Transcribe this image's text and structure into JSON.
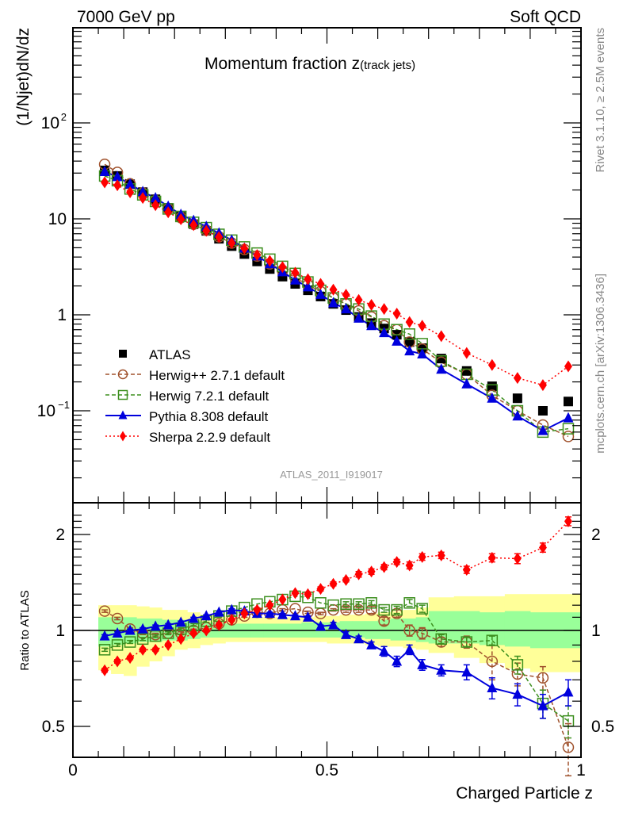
{
  "header": {
    "left_label": "7000 GeV pp",
    "right_label": "Soft QCD"
  },
  "side_labels": {
    "rivet": "Rivet 3.1.10, ≥ 2.5M events",
    "mcplots": "mcplots.cern.ch [arXiv:1306.3436]"
  },
  "chart_data": [
    {
      "type": "scatter",
      "panel": "main",
      "title": "Momentum fraction z",
      "title_suffix": "(track jets)",
      "xlabel": "Charged Particle z",
      "ylabel": "(1/Njet)dN/dz",
      "yscale": "log",
      "xlim": [
        0,
        1
      ],
      "ylim": [
        0.022,
        800
      ],
      "ytick_labels": [
        {
          "v": 100,
          "base": "10",
          "exp": "2"
        },
        {
          "v": 10,
          "base": "10",
          "exp": ""
        },
        {
          "v": 1,
          "base": "1",
          "exp": ""
        },
        {
          "v": 0.1,
          "base": "10",
          "exp": "−1"
        }
      ],
      "analysis_id": "ATLAS_2011_I919017",
      "legend_position": "bottom-left",
      "x": [
        0.0625,
        0.0875,
        0.1125,
        0.1375,
        0.1625,
        0.1875,
        0.2125,
        0.2375,
        0.2625,
        0.2875,
        0.3125,
        0.3375,
        0.3625,
        0.3875,
        0.4125,
        0.4375,
        0.4625,
        0.4875,
        0.5125,
        0.5375,
        0.5625,
        0.5875,
        0.6125,
        0.6375,
        0.6625,
        0.6875,
        0.725,
        0.775,
        0.825,
        0.875,
        0.925,
        0.975
      ],
      "series": [
        {
          "name": "ATLAS",
          "style": "data",
          "color": "#000000",
          "values": [
            32,
            28,
            23,
            19,
            16,
            13,
            10.5,
            8.8,
            7.5,
            6.2,
            5.2,
            4.3,
            3.6,
            3.0,
            2.5,
            2.1,
            1.8,
            1.55,
            1.3,
            1.12,
            0.95,
            0.82,
            0.72,
            0.62,
            0.52,
            0.45,
            0.35,
            0.26,
            0.18,
            0.135,
            0.1,
            0.125
          ]
        },
        {
          "name": "Herwig++ 2.7.1 default",
          "style": "circle-dashed",
          "color": "#a0522d",
          "values": [
            37,
            30.5,
            23.2,
            18.6,
            15.5,
            12.7,
            10.3,
            8.8,
            7.6,
            6.5,
            5.6,
            4.8,
            4.1,
            3.4,
            2.9,
            2.45,
            2.05,
            1.75,
            1.5,
            1.3,
            1.1,
            0.95,
            0.77,
            0.7,
            0.52,
            0.44,
            0.32,
            0.24,
            0.145,
            0.1,
            0.071,
            0.054
          ]
        },
        {
          "name": "Herwig 7.2.1 default",
          "style": "square-dashed",
          "color": "#3d8f1f",
          "values": [
            28,
            25,
            20.5,
            17.8,
            15.2,
            12.7,
            10.6,
            9.2,
            8.1,
            6.9,
            6.0,
            5.1,
            4.4,
            3.8,
            3.2,
            2.7,
            2.2,
            1.8,
            1.5,
            1.3,
            1.15,
            0.97,
            0.8,
            0.7,
            0.63,
            0.5,
            0.33,
            0.24,
            0.165,
            0.1,
            0.06,
            0.065
          ]
        },
        {
          "name": "Pythia 8.308 default",
          "style": "triangle-solid",
          "color": "#0000dd",
          "values": [
            31,
            27.5,
            23,
            19.2,
            16.5,
            13.5,
            11.1,
            9.6,
            8.3,
            7.1,
            6.0,
            4.95,
            4.1,
            3.4,
            2.8,
            2.3,
            1.95,
            1.63,
            1.33,
            1.15,
            0.92,
            0.77,
            0.65,
            0.53,
            0.42,
            0.39,
            0.27,
            0.19,
            0.135,
            0.088,
            0.062,
            0.084
          ]
        },
        {
          "name": "Sherpa 2.2.9 default",
          "style": "diamond-dotted",
          "color": "#ff0000",
          "values": [
            24,
            22.4,
            18.9,
            16.5,
            13.9,
            11.7,
            9.9,
            8.6,
            7.5,
            6.45,
            5.6,
            4.9,
            4.2,
            3.65,
            3.15,
            2.75,
            2.35,
            2.1,
            1.83,
            1.62,
            1.43,
            1.27,
            1.15,
            1.03,
            0.84,
            0.77,
            0.6,
            0.4,
            0.3,
            0.22,
            0.185,
            0.29
          ]
        }
      ]
    },
    {
      "type": "scatter",
      "panel": "ratio",
      "ylabel": "Ratio to ATLAS",
      "xlabel": "Charged Particle z",
      "yscale": "log",
      "xlim": [
        0,
        1
      ],
      "ylim": [
        0.42,
        2.35
      ],
      "ytick_labels": [
        "2",
        "1",
        "0.5"
      ],
      "xtick_labels": [
        "0",
        "0.5",
        "1"
      ],
      "x": [
        0.0625,
        0.0875,
        0.1125,
        0.1375,
        0.1625,
        0.1875,
        0.2125,
        0.2375,
        0.2625,
        0.2875,
        0.3125,
        0.3375,
        0.3625,
        0.3875,
        0.4125,
        0.4375,
        0.4625,
        0.4875,
        0.5125,
        0.5375,
        0.5625,
        0.5875,
        0.6125,
        0.6375,
        0.6625,
        0.6875,
        0.725,
        0.775,
        0.825,
        0.875,
        0.925,
        0.975
      ],
      "bin_edges": [
        0.05,
        0.075,
        0.1,
        0.125,
        0.15,
        0.175,
        0.2,
        0.225,
        0.25,
        0.275,
        0.3,
        0.325,
        0.35,
        0.375,
        0.4,
        0.425,
        0.45,
        0.475,
        0.5,
        0.525,
        0.55,
        0.575,
        0.6,
        0.625,
        0.65,
        0.675,
        0.7,
        0.75,
        0.8,
        0.85,
        0.9,
        0.95,
        1.0
      ],
      "band_1sigma": [
        [
          0.89,
          1.1
        ],
        [
          0.9,
          1.1
        ],
        [
          0.91,
          1.1
        ],
        [
          0.92,
          1.09
        ],
        [
          0.92,
          1.09
        ],
        [
          0.93,
          1.08
        ],
        [
          0.93,
          1.08
        ],
        [
          0.94,
          1.07
        ],
        [
          0.95,
          1.06
        ],
        [
          0.95,
          1.06
        ],
        [
          0.95,
          1.05
        ],
        [
          0.95,
          1.05
        ],
        [
          0.95,
          1.05
        ],
        [
          0.95,
          1.05
        ],
        [
          0.95,
          1.05
        ],
        [
          0.95,
          1.05
        ],
        [
          0.95,
          1.06
        ],
        [
          0.95,
          1.06
        ],
        [
          0.95,
          1.06
        ],
        [
          0.95,
          1.07
        ],
        [
          0.95,
          1.07
        ],
        [
          0.94,
          1.07
        ],
        [
          0.94,
          1.08
        ],
        [
          0.93,
          1.09
        ],
        [
          0.93,
          1.09
        ],
        [
          0.92,
          1.1
        ],
        [
          0.91,
          1.15
        ],
        [
          0.91,
          1.15
        ],
        [
          0.9,
          1.14
        ],
        [
          0.89,
          1.15
        ],
        [
          0.88,
          1.14
        ],
        [
          0.88,
          1.14
        ]
      ],
      "band_2sigma": [
        [
          0.75,
          1.2
        ],
        [
          0.73,
          1.2
        ],
        [
          0.72,
          1.2
        ],
        [
          0.77,
          1.19
        ],
        [
          0.8,
          1.18
        ],
        [
          0.83,
          1.16
        ],
        [
          0.87,
          1.16
        ],
        [
          0.88,
          1.14
        ],
        [
          0.9,
          1.12
        ],
        [
          0.91,
          1.11
        ],
        [
          0.92,
          1.1
        ],
        [
          0.92,
          1.1
        ],
        [
          0.92,
          1.1
        ],
        [
          0.92,
          1.1
        ],
        [
          0.92,
          1.1
        ],
        [
          0.92,
          1.1
        ],
        [
          0.92,
          1.1
        ],
        [
          0.92,
          1.11
        ],
        [
          0.91,
          1.11
        ],
        [
          0.91,
          1.12
        ],
        [
          0.91,
          1.12
        ],
        [
          0.9,
          1.13
        ],
        [
          0.89,
          1.14
        ],
        [
          0.89,
          1.15
        ],
        [
          0.88,
          1.16
        ],
        [
          0.87,
          1.18
        ],
        [
          0.85,
          1.27
        ],
        [
          0.82,
          1.28
        ],
        [
          0.79,
          1.28
        ],
        [
          0.76,
          1.3
        ],
        [
          0.74,
          1.3
        ],
        [
          0.74,
          1.3
        ]
      ],
      "series": [
        {
          "name": "Herwig++ 2.7.1 default",
          "color": "#a0522d",
          "style": "circle-dashed",
          "values": [
            1.15,
            1.09,
            1.01,
            0.98,
            0.97,
            0.98,
            0.98,
            1.0,
            1.02,
            1.05,
            1.08,
            1.11,
            1.14,
            1.13,
            1.16,
            1.17,
            1.14,
            1.13,
            1.16,
            1.16,
            1.16,
            1.16,
            1.07,
            1.13,
            1.0,
            0.98,
            0.92,
            0.92,
            0.8,
            0.73,
            0.71,
            0.43
          ],
          "errors": [
            0.01,
            0.01,
            0.01,
            0.01,
            0.01,
            0.01,
            0.01,
            0.01,
            0.01,
            0.01,
            0.01,
            0.01,
            0.01,
            0.01,
            0.01,
            0.01,
            0.01,
            0.01,
            0.01,
            0.02,
            0.02,
            0.03,
            0.03,
            0.03,
            0.04,
            0.04,
            0.03,
            0.04,
            0.1,
            0.06,
            0.06,
            0.08
          ]
        },
        {
          "name": "Herwig 7.2.1 default",
          "color": "#3d8f1f",
          "style": "square-dashed",
          "values": [
            0.87,
            0.9,
            0.92,
            0.94,
            0.96,
            0.98,
            1.01,
            1.04,
            1.07,
            1.11,
            1.15,
            1.18,
            1.21,
            1.23,
            1.25,
            1.28,
            1.27,
            1.22,
            1.2,
            1.21,
            1.21,
            1.22,
            1.16,
            1.16,
            1.22,
            1.17,
            0.94,
            0.92,
            0.93,
            0.78,
            0.59,
            0.52
          ],
          "errors": [
            0.01,
            0.01,
            0.01,
            0.01,
            0.01,
            0.01,
            0.01,
            0.01,
            0.01,
            0.01,
            0.01,
            0.01,
            0.01,
            0.01,
            0.01,
            0.01,
            0.01,
            0.01,
            0.01,
            0.02,
            0.02,
            0.02,
            0.02,
            0.03,
            0.03,
            0.03,
            0.03,
            0.03,
            0.03,
            0.05,
            0.06,
            0.06
          ]
        },
        {
          "name": "Pythia 8.308 default",
          "color": "#0000dd",
          "style": "triangle-solid",
          "values": [
            0.96,
            0.98,
            1.0,
            1.01,
            1.03,
            1.04,
            1.06,
            1.09,
            1.11,
            1.14,
            1.16,
            1.15,
            1.13,
            1.13,
            1.12,
            1.11,
            1.1,
            1.03,
            1.04,
            0.97,
            0.94,
            0.9,
            0.86,
            0.8,
            0.87,
            0.78,
            0.75,
            0.74,
            0.66,
            0.63,
            0.58,
            0.64
          ],
          "errors": [
            0.01,
            0.01,
            0.01,
            0.01,
            0.01,
            0.01,
            0.01,
            0.01,
            0.01,
            0.01,
            0.01,
            0.01,
            0.01,
            0.01,
            0.01,
            0.01,
            0.01,
            0.01,
            0.02,
            0.02,
            0.02,
            0.02,
            0.03,
            0.03,
            0.03,
            0.03,
            0.03,
            0.04,
            0.05,
            0.05,
            0.05,
            0.06
          ]
        },
        {
          "name": "Sherpa 2.2.9 default",
          "color": "#ff0000",
          "style": "diamond-dotted",
          "values": [
            0.75,
            0.8,
            0.82,
            0.87,
            0.87,
            0.9,
            0.94,
            0.98,
            1.0,
            1.04,
            1.08,
            1.13,
            1.16,
            1.2,
            1.25,
            1.31,
            1.3,
            1.35,
            1.4,
            1.44,
            1.5,
            1.53,
            1.58,
            1.64,
            1.6,
            1.7,
            1.72,
            1.55,
            1.69,
            1.68,
            1.82,
            2.2
          ],
          "errors": [
            0.01,
            0.01,
            0.01,
            0.01,
            0.01,
            0.01,
            0.01,
            0.01,
            0.01,
            0.01,
            0.01,
            0.01,
            0.01,
            0.01,
            0.01,
            0.01,
            0.02,
            0.02,
            0.02,
            0.02,
            0.03,
            0.03,
            0.03,
            0.03,
            0.04,
            0.04,
            0.04,
            0.04,
            0.05,
            0.06,
            0.06,
            0.07
          ]
        }
      ]
    }
  ]
}
